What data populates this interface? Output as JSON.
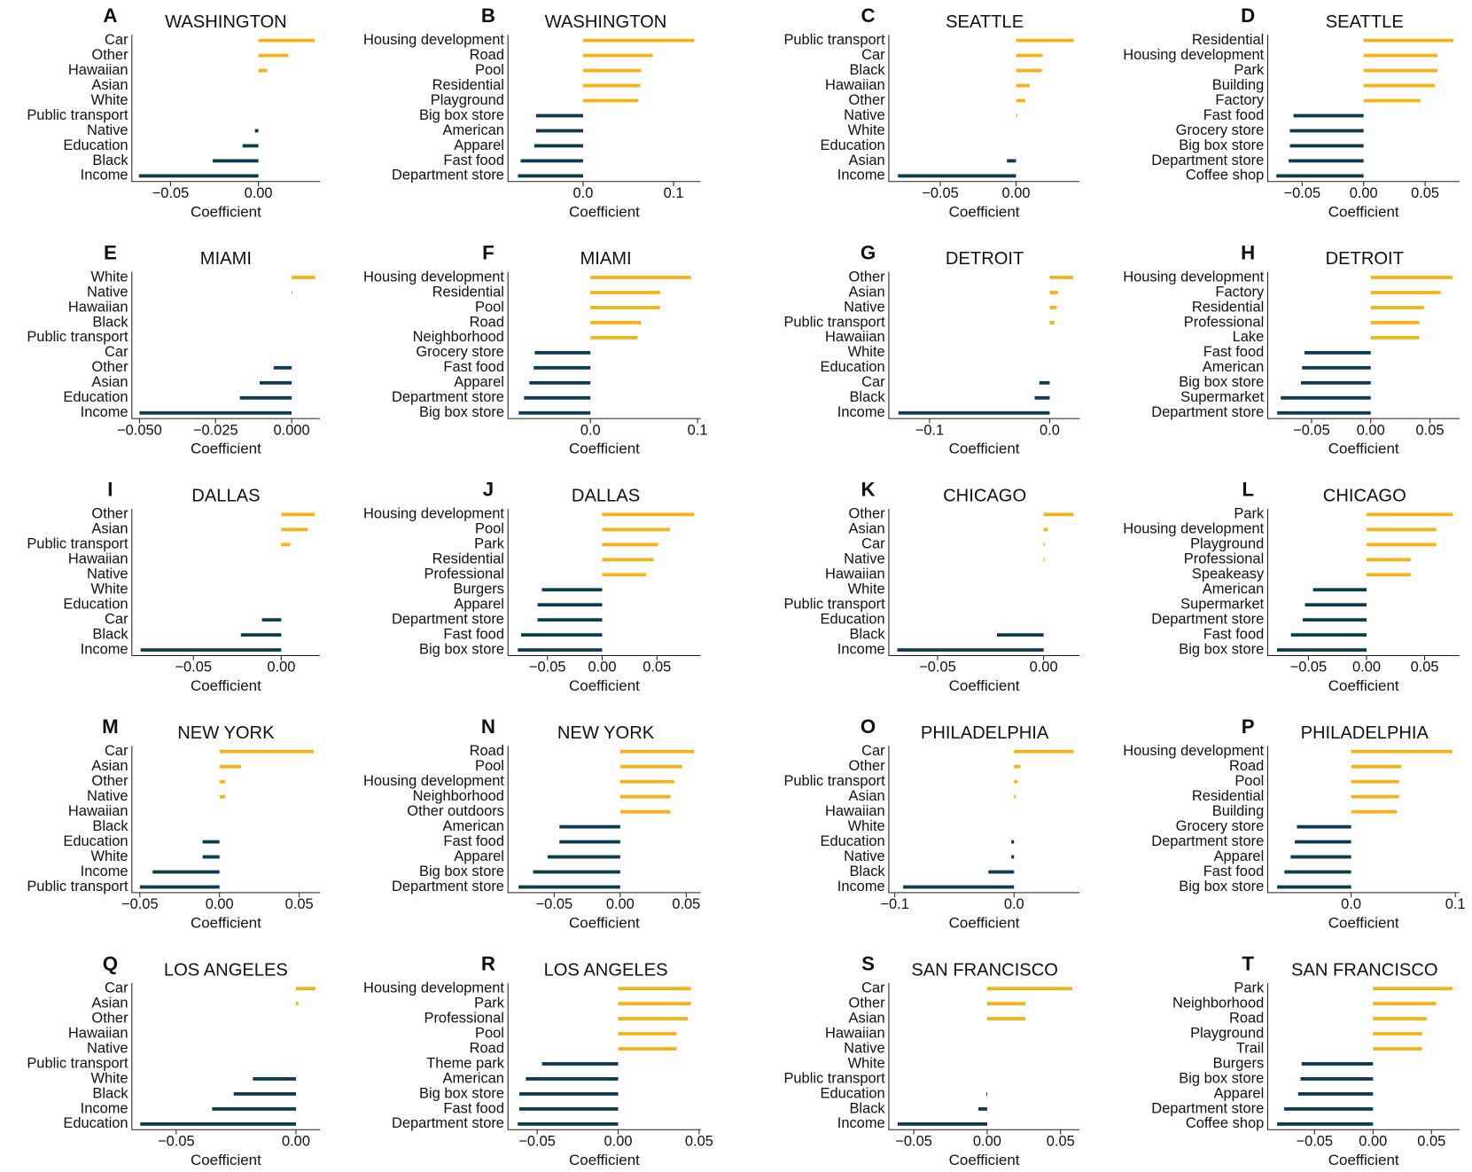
{
  "chart_data": [
    {
      "type": "bar",
      "orientation": "horizontal",
      "label": "A",
      "title": "WASHINGTON",
      "xlabel": "Coefficient",
      "color_positive": "#f5b21b",
      "color_negative": "#0f3b4f",
      "categories": [
        "Car",
        "Other",
        "Hawaiian",
        "Asian",
        "White",
        "Public transport",
        "Native",
        "Education",
        "Black",
        "Income"
      ],
      "values": [
        0.032,
        0.017,
        0.005,
        0,
        0,
        0,
        -0.002,
        -0.009,
        -0.026,
        -0.068
      ],
      "xlim": [
        -0.072,
        0.035
      ],
      "xticks": [
        {
          "value": -0.05,
          "label": "−0.05"
        },
        {
          "value": 0,
          "label": "0.00"
        }
      ]
    },
    {
      "type": "bar",
      "orientation": "horizontal",
      "label": "B",
      "title": "WASHINGTON",
      "xlabel": "Coefficient",
      "color_positive": "#f5b21b",
      "color_negative": "#0f3b4f",
      "categories": [
        "Housing development",
        "Road",
        "Pool",
        "Residential",
        "Playground",
        "Big box store",
        "American",
        "Apparel",
        "Fast food",
        "Department store"
      ],
      "values": [
        0.123,
        0.077,
        0.064,
        0.063,
        0.061,
        -0.052,
        -0.052,
        -0.054,
        -0.069,
        -0.072
      ],
      "xlim": [
        -0.083,
        0.13
      ],
      "xticks": [
        {
          "value": 0,
          "label": "0.0"
        },
        {
          "value": 0.1,
          "label": "0.1"
        }
      ]
    },
    {
      "type": "bar",
      "orientation": "horizontal",
      "label": "C",
      "title": "SEATTLE",
      "xlabel": "Coefficient",
      "color_positive": "#f5b21b",
      "color_negative": "#0f3b4f",
      "categories": [
        "Public transport",
        "Car",
        "Black",
        "Hawaiian",
        "Other",
        "Native",
        "White",
        "Education",
        "Asian",
        "Income"
      ],
      "values": [
        0.038,
        0.0175,
        0.017,
        0.009,
        0.006,
        0.001,
        0,
        0,
        -0.006,
        -0.078
      ],
      "xlim": [
        -0.084,
        0.042
      ],
      "xticks": [
        {
          "value": -0.05,
          "label": "−0.05"
        },
        {
          "value": 0,
          "label": "0.00"
        }
      ]
    },
    {
      "type": "bar",
      "orientation": "horizontal",
      "label": "D",
      "title": "SEATTLE",
      "xlabel": "Coefficient",
      "color_positive": "#f5b21b",
      "color_negative": "#0f3b4f",
      "categories": [
        "Residential",
        "Housing development",
        "Park",
        "Building",
        "Factory",
        "Fast food",
        "Grocery store",
        "Big box store",
        "Department store",
        "Coffee shop"
      ],
      "values": [
        0.073,
        0.06,
        0.06,
        0.058,
        0.046,
        -0.057,
        -0.06,
        -0.06,
        -0.061,
        -0.071
      ],
      "xlim": [
        -0.078,
        0.078
      ],
      "xticks": [
        {
          "value": -0.05,
          "label": "−0.05"
        },
        {
          "value": 0,
          "label": "0.00"
        },
        {
          "value": 0.05,
          "label": "0.05"
        }
      ]
    },
    {
      "type": "bar",
      "orientation": "horizontal",
      "label": "E",
      "title": "MIAMI",
      "xlabel": "Coefficient",
      "color_positive": "#f5b21b",
      "color_negative": "#0f3b4f",
      "categories": [
        "White",
        "Native",
        "Hawaiian",
        "Black",
        "Public transport",
        "Car",
        "Other",
        "Asian",
        "Education",
        "Income"
      ],
      "values": [
        0.0077,
        0.0003,
        0,
        0,
        0,
        0,
        -0.0059,
        -0.0105,
        -0.017,
        -0.05
      ],
      "xlim": [
        -0.0525,
        0.0093
      ],
      "xticks": [
        {
          "value": -0.05,
          "label": "−0.050"
        },
        {
          "value": -0.025,
          "label": "−0.025"
        },
        {
          "value": 0,
          "label": "0.000"
        }
      ]
    },
    {
      "type": "bar",
      "orientation": "horizontal",
      "label": "F",
      "title": "MIAMI",
      "xlabel": "Coefficient",
      "color_positive": "#f5b21b",
      "color_negative": "#0f3b4f",
      "categories": [
        "Housing development",
        "Residential",
        "Pool",
        "Road",
        "Neighborhood",
        "Grocery store",
        "Fast food",
        "Apparel",
        "Department store",
        "Big box store"
      ],
      "values": [
        0.094,
        0.065,
        0.065,
        0.047,
        0.044,
        -0.052,
        -0.053,
        -0.057,
        -0.062,
        -0.067
      ],
      "xlim": [
        -0.077,
        0.103
      ],
      "xticks": [
        {
          "value": 0,
          "label": "0.0"
        },
        {
          "value": 0.1,
          "label": "0.1"
        }
      ]
    },
    {
      "type": "bar",
      "orientation": "horizontal",
      "label": "G",
      "title": "DETROIT",
      "xlabel": "Coefficient",
      "color_positive": "#f5b21b",
      "color_negative": "#0f3b4f",
      "categories": [
        "Other",
        "Asian",
        "Native",
        "Public transport",
        "Hawaiian",
        "White",
        "Education",
        "Car",
        "Black",
        "Income"
      ],
      "values": [
        0.0195,
        0.007,
        0.006,
        0.004,
        0,
        0,
        0,
        -0.0086,
        -0.0125,
        -0.126
      ],
      "xlim": [
        -0.134,
        0.025
      ],
      "xticks": [
        {
          "value": -0.1,
          "label": "−0.1"
        },
        {
          "value": 0,
          "label": "0.0"
        }
      ]
    },
    {
      "type": "bar",
      "orientation": "horizontal",
      "label": "H",
      "title": "DETROIT",
      "xlabel": "Coefficient",
      "color_positive": "#f5b21b",
      "color_negative": "#0f3b4f",
      "categories": [
        "Housing development",
        "Factory",
        "Residential",
        "Professional",
        "Lake",
        "Fast food",
        "American",
        "Big box store",
        "Supermarket",
        "Department store"
      ],
      "values": [
        0.069,
        0.059,
        0.045,
        0.041,
        0.041,
        -0.056,
        -0.058,
        -0.059,
        -0.076,
        -0.079
      ],
      "xlim": [
        -0.087,
        0.075
      ],
      "xticks": [
        {
          "value": -0.05,
          "label": "−0.05"
        },
        {
          "value": 0,
          "label": "0.00"
        },
        {
          "value": 0.05,
          "label": "0.05"
        }
      ]
    },
    {
      "type": "bar",
      "orientation": "horizontal",
      "label": "I",
      "title": "DALLAS",
      "xlabel": "Coefficient",
      "color_positive": "#f5b21b",
      "color_negative": "#0f3b4f",
      "categories": [
        "Other",
        "Asian",
        "Public transport",
        "Hawaiian",
        "Native",
        "White",
        "Education",
        "Car",
        "Black",
        "Income"
      ],
      "values": [
        0.019,
        0.015,
        0.005,
        0,
        0,
        0,
        0,
        -0.011,
        -0.023,
        -0.08
      ],
      "xlim": [
        -0.085,
        0.022
      ],
      "xticks": [
        {
          "value": -0.05,
          "label": "−0.05"
        },
        {
          "value": 0,
          "label": "0.00"
        }
      ]
    },
    {
      "type": "bar",
      "orientation": "horizontal",
      "label": "J",
      "title": "DALLAS",
      "xlabel": "Coefficient",
      "color_positive": "#f5b21b",
      "color_negative": "#0f3b4f",
      "categories": [
        "Housing development",
        "Pool",
        "Park",
        "Residential",
        "Professional",
        "Burgers",
        "Apparel",
        "Department store",
        "Fast food",
        "Big box store"
      ],
      "values": [
        0.084,
        0.062,
        0.051,
        0.047,
        0.04,
        -0.055,
        -0.059,
        -0.059,
        -0.074,
        -0.077
      ],
      "xlim": [
        -0.086,
        0.09
      ],
      "xticks": [
        {
          "value": -0.05,
          "label": "−0.05"
        },
        {
          "value": 0,
          "label": "0.00"
        },
        {
          "value": 0.05,
          "label": "0.05"
        }
      ]
    },
    {
      "type": "bar",
      "orientation": "horizontal",
      "label": "K",
      "title": "CHICAGO",
      "xlabel": "Coefficient",
      "color_positive": "#f5b21b",
      "color_negative": "#0f3b4f",
      "categories": [
        "Other",
        "Asian",
        "Car",
        "Native",
        "Hawaiian",
        "White",
        "Public transport",
        "Education",
        "Black",
        "Income"
      ],
      "values": [
        0.014,
        0.002,
        0.0005,
        0.0005,
        0,
        0,
        0,
        0,
        -0.022,
        -0.069
      ],
      "xlim": [
        -0.073,
        0.017
      ],
      "xticks": [
        {
          "value": -0.05,
          "label": "−0.05"
        },
        {
          "value": 0,
          "label": "0.00"
        }
      ]
    },
    {
      "type": "bar",
      "orientation": "horizontal",
      "label": "L",
      "title": "CHICAGO",
      "xlabel": "Coefficient",
      "color_positive": "#f5b21b",
      "color_negative": "#0f3b4f",
      "categories": [
        "Park",
        "Housing development",
        "Playground",
        "Professional",
        "Speakeasy",
        "American",
        "Supermarket",
        "Department store",
        "Fast food",
        "Big box store"
      ],
      "values": [
        0.074,
        0.06,
        0.06,
        0.038,
        0.038,
        -0.046,
        -0.053,
        -0.055,
        -0.065,
        -0.077
      ],
      "xlim": [
        -0.085,
        0.08
      ],
      "xticks": [
        {
          "value": -0.05,
          "label": "−0.05"
        },
        {
          "value": 0,
          "label": "0.00"
        },
        {
          "value": 0.05,
          "label": "0.05"
        }
      ]
    },
    {
      "type": "bar",
      "orientation": "horizontal",
      "label": "M",
      "title": "NEW YORK",
      "xlabel": "Coefficient",
      "color_positive": "#f5b21b",
      "color_negative": "#0f3b4f",
      "categories": [
        "Car",
        "Asian",
        "Other",
        "Native",
        "Hawaiian",
        "Black",
        "Education",
        "White",
        "Income",
        "Public transport"
      ],
      "values": [
        0.059,
        0.0135,
        0.0035,
        0.0035,
        0,
        0,
        -0.0106,
        -0.0106,
        -0.042,
        -0.05
      ],
      "xlim": [
        -0.055,
        0.063
      ],
      "xticks": [
        {
          "value": -0.05,
          "label": "−0.05"
        },
        {
          "value": 0,
          "label": "0.00"
        },
        {
          "value": 0.05,
          "label": "0.05"
        }
      ]
    },
    {
      "type": "bar",
      "orientation": "horizontal",
      "label": "N",
      "title": "NEW YORK",
      "xlabel": "Coefficient",
      "color_positive": "#f5b21b",
      "color_negative": "#0f3b4f",
      "categories": [
        "Road",
        "Pool",
        "Housing development",
        "Neighborhood",
        "Other outdoors",
        "American",
        "Fast food",
        "Apparel",
        "Big box store",
        "Department store"
      ],
      "values": [
        0.056,
        0.047,
        0.041,
        0.038,
        0.038,
        -0.046,
        -0.046,
        -0.055,
        -0.066,
        -0.077
      ],
      "xlim": [
        -0.085,
        0.061
      ],
      "xticks": [
        {
          "value": -0.05,
          "label": "−0.05"
        },
        {
          "value": 0,
          "label": "0.00"
        },
        {
          "value": 0.05,
          "label": "0.05"
        }
      ]
    },
    {
      "type": "bar",
      "orientation": "horizontal",
      "label": "O",
      "title": "PHILADELPHIA",
      "xlabel": "Coefficient",
      "color_positive": "#f5b21b",
      "color_negative": "#0f3b4f",
      "categories": [
        "Car",
        "Other",
        "Public transport",
        "Asian",
        "Hawaiian",
        "White",
        "Education",
        "Native",
        "Black",
        "Income"
      ],
      "values": [
        0.05,
        0.0054,
        0.003,
        0.0015,
        0,
        0,
        -0.0023,
        -0.0023,
        -0.0215,
        -0.093
      ],
      "xlim": [
        -0.105,
        0.055
      ],
      "xticks": [
        {
          "value": -0.1,
          "label": "−0.1"
        },
        {
          "value": 0,
          "label": "0.0"
        }
      ]
    },
    {
      "type": "bar",
      "orientation": "horizontal",
      "label": "P",
      "title": "PHILADELPHIA",
      "xlabel": "Coefficient",
      "color_positive": "#f5b21b",
      "color_negative": "#0f3b4f",
      "categories": [
        "Housing development",
        "Road",
        "Pool",
        "Residential",
        "Building",
        "Grocery store",
        "Department store",
        "Apparel",
        "Fast food",
        "Big box store"
      ],
      "values": [
        0.097,
        0.048,
        0.046,
        0.046,
        0.044,
        -0.052,
        -0.054,
        -0.058,
        -0.064,
        -0.071
      ],
      "xlim": [
        -0.08,
        0.104
      ],
      "xticks": [
        {
          "value": 0,
          "label": "0.0"
        },
        {
          "value": 0.1,
          "label": "0.1"
        }
      ]
    },
    {
      "type": "bar",
      "orientation": "horizontal",
      "label": "Q",
      "title": "LOS ANGELES",
      "xlabel": "Coefficient",
      "color_positive": "#f5b21b",
      "color_negative": "#0f3b4f",
      "categories": [
        "Car",
        "Asian",
        "Other",
        "Hawaiian",
        "Native",
        "Public transport",
        "White",
        "Black",
        "Income",
        "Education"
      ],
      "values": [
        0.008,
        0.001,
        0,
        0,
        0,
        0,
        -0.018,
        -0.026,
        -0.035,
        -0.065
      ],
      "xlim": [
        -0.0685,
        0.01
      ],
      "xticks": [
        {
          "value": -0.05,
          "label": "−0.05"
        },
        {
          "value": 0,
          "label": "0.00"
        }
      ]
    },
    {
      "type": "bar",
      "orientation": "horizontal",
      "label": "R",
      "title": "LOS ANGELES",
      "xlabel": "Coefficient",
      "color_positive": "#f5b21b",
      "color_negative": "#0f3b4f",
      "categories": [
        "Housing development",
        "Park",
        "Professional",
        "Pool",
        "Road",
        "Theme park",
        "American",
        "Big box store",
        "Fast food",
        "Department store"
      ],
      "values": [
        0.045,
        0.045,
        0.043,
        0.036,
        0.036,
        -0.047,
        -0.057,
        -0.061,
        -0.061,
        -0.062
      ],
      "xlim": [
        -0.068,
        0.051
      ],
      "xticks": [
        {
          "value": -0.05,
          "label": "−0.05"
        },
        {
          "value": 0,
          "label": "0.00"
        },
        {
          "value": 0.05,
          "label": "0.05"
        }
      ]
    },
    {
      "type": "bar",
      "orientation": "horizontal",
      "label": "S",
      "title": "SAN FRANCISCO",
      "xlabel": "Coefficient",
      "color_positive": "#f5b21b",
      "color_negative": "#0f3b4f",
      "categories": [
        "Car",
        "Other",
        "Asian",
        "Hawaiian",
        "Native",
        "White",
        "Public transport",
        "Education",
        "Black",
        "Income"
      ],
      "values": [
        0.058,
        0.026,
        0.026,
        0,
        0,
        0,
        0,
        -0.0006,
        -0.006,
        -0.061
      ],
      "xlim": [
        -0.067,
        0.063
      ],
      "xticks": [
        {
          "value": -0.05,
          "label": "−0.05"
        },
        {
          "value": 0,
          "label": "0.00"
        },
        {
          "value": 0.05,
          "label": "0.05"
        }
      ]
    },
    {
      "type": "bar",
      "orientation": "horizontal",
      "label": "T",
      "title": "SAN FRANCISCO",
      "xlabel": "Coefficient",
      "color_positive": "#f5b21b",
      "color_negative": "#0f3b4f",
      "categories": [
        "Park",
        "Neighborhood",
        "Road",
        "Playground",
        "Trail",
        "Burgers",
        "Big box store",
        "Apparel",
        "Department store",
        "Coffee shop"
      ],
      "values": [
        0.068,
        0.054,
        0.046,
        0.042,
        0.042,
        -0.061,
        -0.062,
        -0.064,
        -0.076,
        -0.082
      ],
      "xlim": [
        -0.09,
        0.074
      ],
      "xticks": [
        {
          "value": -0.05,
          "label": "−0.05"
        },
        {
          "value": 0,
          "label": "0.00"
        },
        {
          "value": 0.05,
          "label": "0.05"
        }
      ]
    }
  ]
}
